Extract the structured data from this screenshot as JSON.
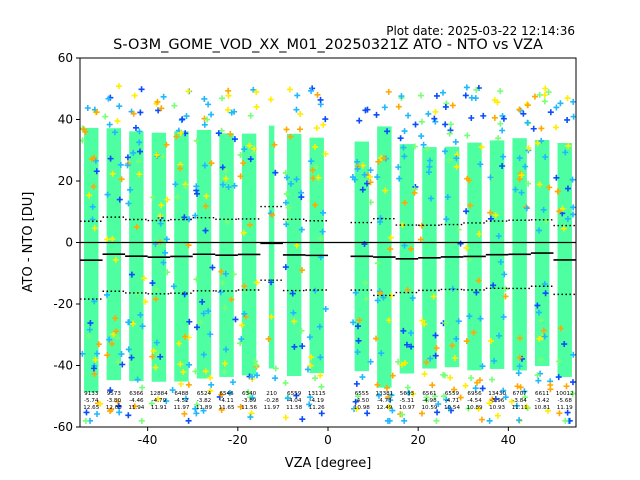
{
  "plot_date_label": "Plot date: 2025-03-22 12:14:36",
  "chart_data": {
    "type": "scatter",
    "title": "S-O3M_GOME_VOD_XX_M01_20250321Z ATO - NTO vs VZA",
    "xlabel": "VZA [degree]",
    "ylabel": "ATO - NTO [DU]",
    "xlim": [
      -55,
      55
    ],
    "ylim": [
      -60,
      60
    ],
    "x_ticks": [
      -40,
      -20,
      0,
      20,
      40
    ],
    "y_ticks": [
      -60,
      -40,
      -20,
      0,
      20,
      40,
      60
    ],
    "grid": false,
    "legend": "none",
    "zero_line": 0,
    "colors": {
      "dense_core": "#4dffa0",
      "scatter_cyan": "#1fb8ff",
      "scatter_blue": "#0a4dff",
      "scatter_yellow": "#ffee00",
      "scatter_orange": "#ffa800",
      "scatter_green": "#77ff77",
      "mean_line": "#000000"
    },
    "bins": [
      {
        "vza": -52.5,
        "count": "9133",
        "mean": "-5.74",
        "std": "12.65"
      },
      {
        "vza": -47.5,
        "count": "9573",
        "mean": "-3.80",
        "std": "12.05"
      },
      {
        "vza": -42.5,
        "count": "6366",
        "mean": "-4.46",
        "std": "11.94"
      },
      {
        "vza": -37.5,
        "count": "12884",
        "mean": "-4.79",
        "std": "11.91"
      },
      {
        "vza": -32.5,
        "count": "6488",
        "mean": "-4.52",
        "std": "11.97"
      },
      {
        "vza": -27.5,
        "count": "6524",
        "mean": "-3.82",
        "std": "11.89"
      },
      {
        "vza": -22.5,
        "count": "6546",
        "mean": "-4.11",
        "std": "11.65"
      },
      {
        "vza": -17.5,
        "count": "6340",
        "mean": "-3.89",
        "std": "11.56"
      },
      {
        "vza": -12.5,
        "count": "210",
        "mean": "-0.28",
        "std": "11.97"
      },
      {
        "vza": -7.5,
        "count": "6559",
        "mean": "-4.04",
        "std": "11.58"
      },
      {
        "vza": -2.5,
        "count": "13115",
        "mean": "-4.19",
        "std": "11.26"
      },
      {
        "vza": 7.5,
        "count": "6555",
        "mean": "-4.50",
        "std": "10.98"
      },
      {
        "vza": 12.5,
        "count": "13381",
        "mean": "-4.73",
        "std": "12.49"
      },
      {
        "vza": 17.5,
        "count": "5633",
        "mean": "-5.31",
        "std": "10.97"
      },
      {
        "vza": 22.5,
        "count": "6561",
        "mean": "-4.98",
        "std": "10.59"
      },
      {
        "vza": 27.5,
        "count": "6559",
        "mean": "-4.71",
        "std": "10.54"
      },
      {
        "vza": 32.5,
        "count": "6956",
        "mean": "-4.54",
        "std": "10.89"
      },
      {
        "vza": 37.5,
        "count": "13430",
        "mean": "-3.96",
        "std": "10.93"
      },
      {
        "vza": 42.5,
        "count": "6707",
        "mean": "-3.84",
        "std": "11.11"
      },
      {
        "vza": 47.5,
        "count": "6611",
        "mean": "-3.42",
        "std": "10.81"
      },
      {
        "vza": 52.5,
        "count": "10012",
        "mean": "-5.68",
        "std": "11.19"
      }
    ]
  }
}
